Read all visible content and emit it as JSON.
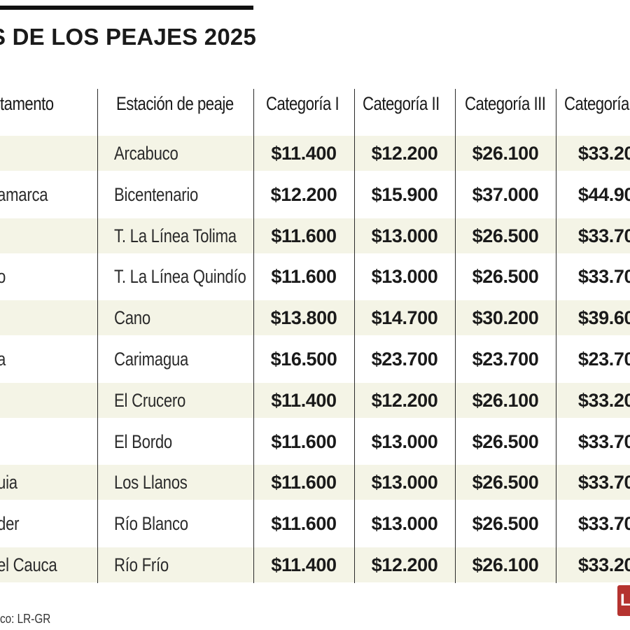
{
  "title": "S DE LOS PEAJES 2025",
  "columns": {
    "departamento": "tamento",
    "estacion": "Estación de peaje",
    "cat1": "Categoría I",
    "cat2": "Categoría II",
    "cat3": "Categoría III",
    "cat4": "Categoría"
  },
  "rows": [
    {
      "dep": "",
      "est": "Arcabuco",
      "c1": "$11.400",
      "c2": "$12.200",
      "c3": "$26.100",
      "c4": "$33.20"
    },
    {
      "dep": "amarca",
      "est": "Bicentenario",
      "c1": "$12.200",
      "c2": "$15.900",
      "c3": "$37.000",
      "c4": "$44.90"
    },
    {
      "dep": "",
      "est": "T. La Línea Tolima",
      "c1": "$11.600",
      "c2": "$13.000",
      "c3": "$26.500",
      "c4": "$33.70"
    },
    {
      "dep": "o",
      "est": "T. La Línea Quindío",
      "c1": "$11.600",
      "c2": "$13.000",
      "c3": "$26.500",
      "c4": "$33.70"
    },
    {
      "dep": "",
      "est": "Cano",
      "c1": "$13.800",
      "c2": "$14.700",
      "c3": "$30.200",
      "c4": "$39.60"
    },
    {
      "dep": "a",
      "est": "Carimagua",
      "c1": "$16.500",
      "c2": "$23.700",
      "c3": "$23.700",
      "c4": "$23.70"
    },
    {
      "dep": "",
      "est": "El Crucero",
      "c1": "$11.400",
      "c2": "$12.200",
      "c3": "$26.100",
      "c4": "$33.20"
    },
    {
      "dep": "",
      "est": "El Bordo",
      "c1": "$11.600",
      "c2": "$13.000",
      "c3": "$26.500",
      "c4": "$33.70"
    },
    {
      "dep": "uia",
      "est": "Los Llanos",
      "c1": "$11.600",
      "c2": "$13.000",
      "c3": "$26.500",
      "c4": "$33.70"
    },
    {
      "dep": "der",
      "est": "Río Blanco",
      "c1": "$11.600",
      "c2": "$13.000",
      "c3": "$26.500",
      "c4": "$33.70"
    },
    {
      "dep": "el Cauca",
      "est": "Río Frío",
      "c1": "$11.400",
      "c2": "$12.200",
      "c3": "$26.100",
      "c4": "$33.20"
    }
  ],
  "source": "co: LR-GR",
  "logo_text": "L",
  "colors": {
    "row_shade": "#f4f4e6",
    "logo": "#b5332f",
    "rule": "#111111"
  }
}
